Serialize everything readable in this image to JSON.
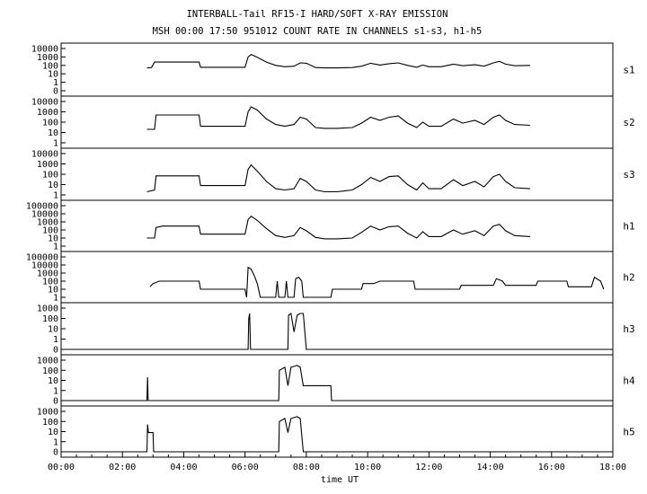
{
  "chart_data": {
    "type": "line",
    "title": "INTERBALL-Tail RF15-I HARD/SOFT X-RAY EMISSION",
    "subtitle": "MSH 00:00 17:50 951012  COUNT RATE IN CHANNELS s1-s3, h1-h5",
    "xlabel": "time UT",
    "x_ticks": [
      "00:00",
      "02:00",
      "04:00",
      "06:00",
      "08:00",
      "10:00",
      "12:00",
      "14:00",
      "16:00",
      "18:00"
    ],
    "xlim": [
      0,
      18
    ],
    "y_scale": "log",
    "panels": [
      {
        "name": "s1",
        "yticks": [
          "10000",
          "1000",
          "100",
          "10",
          "1",
          "0"
        ],
        "points": [
          [
            2.8,
            50
          ],
          [
            2.95,
            55
          ],
          [
            3.05,
            250
          ],
          [
            4.5,
            250
          ],
          [
            4.55,
            60
          ],
          [
            6.0,
            60
          ],
          [
            6.1,
            1000
          ],
          [
            6.2,
            2000
          ],
          [
            6.4,
            900
          ],
          [
            6.7,
            250
          ],
          [
            7.0,
            100
          ],
          [
            7.3,
            70
          ],
          [
            7.6,
            80
          ],
          [
            7.8,
            200
          ],
          [
            8.0,
            180
          ],
          [
            8.3,
            55
          ],
          [
            8.6,
            50
          ],
          [
            9.0,
            50
          ],
          [
            9.5,
            55
          ],
          [
            9.8,
            80
          ],
          [
            10.1,
            180
          ],
          [
            10.4,
            110
          ],
          [
            10.7,
            160
          ],
          [
            11.0,
            200
          ],
          [
            11.3,
            100
          ],
          [
            11.6,
            60
          ],
          [
            11.8,
            110
          ],
          [
            12.0,
            70
          ],
          [
            12.4,
            70
          ],
          [
            12.8,
            140
          ],
          [
            13.1,
            90
          ],
          [
            13.5,
            120
          ],
          [
            13.8,
            80
          ],
          [
            14.1,
            200
          ],
          [
            14.3,
            300
          ],
          [
            14.5,
            140
          ],
          [
            14.8,
            90
          ],
          [
            15.3,
            100
          ]
        ]
      },
      {
        "name": "s2",
        "yticks": [
          "10000",
          "1000",
          "100",
          "10",
          "1"
        ],
        "points": [
          [
            2.8,
            20
          ],
          [
            3.05,
            20
          ],
          [
            3.1,
            500
          ],
          [
            4.5,
            500
          ],
          [
            4.55,
            40
          ],
          [
            6.0,
            40
          ],
          [
            6.1,
            1000
          ],
          [
            6.2,
            3000
          ],
          [
            6.4,
            1500
          ],
          [
            6.7,
            200
          ],
          [
            7.0,
            60
          ],
          [
            7.3,
            40
          ],
          [
            7.6,
            60
          ],
          [
            7.8,
            300
          ],
          [
            8.0,
            200
          ],
          [
            8.3,
            30
          ],
          [
            8.6,
            25
          ],
          [
            9.0,
            25
          ],
          [
            9.5,
            30
          ],
          [
            9.8,
            80
          ],
          [
            10.1,
            300
          ],
          [
            10.4,
            150
          ],
          [
            10.7,
            300
          ],
          [
            11.0,
            400
          ],
          [
            11.3,
            80
          ],
          [
            11.6,
            30
          ],
          [
            11.8,
            100
          ],
          [
            12.0,
            40
          ],
          [
            12.4,
            40
          ],
          [
            12.8,
            200
          ],
          [
            13.1,
            80
          ],
          [
            13.5,
            150
          ],
          [
            13.8,
            60
          ],
          [
            14.1,
            300
          ],
          [
            14.3,
            500
          ],
          [
            14.5,
            150
          ],
          [
            14.8,
            60
          ],
          [
            15.3,
            50
          ]
        ]
      },
      {
        "name": "s3",
        "yticks": [
          "10000",
          "1000",
          "100",
          "10",
          "1"
        ],
        "points": [
          [
            2.8,
            2
          ],
          [
            3.05,
            3
          ],
          [
            3.1,
            70
          ],
          [
            4.5,
            70
          ],
          [
            4.55,
            8
          ],
          [
            6.0,
            8
          ],
          [
            6.1,
            300
          ],
          [
            6.2,
            800
          ],
          [
            6.4,
            200
          ],
          [
            6.7,
            20
          ],
          [
            7.0,
            4
          ],
          [
            7.3,
            3
          ],
          [
            7.6,
            4
          ],
          [
            7.8,
            40
          ],
          [
            8.0,
            20
          ],
          [
            8.3,
            3
          ],
          [
            8.6,
            2
          ],
          [
            9.0,
            2
          ],
          [
            9.5,
            3
          ],
          [
            9.8,
            10
          ],
          [
            10.1,
            50
          ],
          [
            10.4,
            20
          ],
          [
            10.7,
            60
          ],
          [
            11.0,
            70
          ],
          [
            11.3,
            10
          ],
          [
            11.6,
            3
          ],
          [
            11.8,
            15
          ],
          [
            12.0,
            4
          ],
          [
            12.4,
            4
          ],
          [
            12.8,
            30
          ],
          [
            13.1,
            8
          ],
          [
            13.5,
            20
          ],
          [
            13.8,
            6
          ],
          [
            14.1,
            60
          ],
          [
            14.3,
            100
          ],
          [
            14.5,
            20
          ],
          [
            14.8,
            5
          ],
          [
            15.3,
            4
          ]
        ]
      },
      {
        "name": "h1",
        "yticks": [
          "100000",
          "10000",
          "1000",
          "100",
          "10",
          "1"
        ],
        "points": [
          [
            2.8,
            10
          ],
          [
            3.05,
            10
          ],
          [
            3.1,
            200
          ],
          [
            3.3,
            300
          ],
          [
            4.5,
            300
          ],
          [
            4.55,
            30
          ],
          [
            6.0,
            30
          ],
          [
            6.1,
            2000
          ],
          [
            6.2,
            5000
          ],
          [
            6.4,
            1500
          ],
          [
            6.7,
            150
          ],
          [
            7.0,
            20
          ],
          [
            7.3,
            12
          ],
          [
            7.6,
            20
          ],
          [
            7.8,
            200
          ],
          [
            8.0,
            80
          ],
          [
            8.3,
            12
          ],
          [
            8.6,
            8
          ],
          [
            9.0,
            8
          ],
          [
            9.5,
            10
          ],
          [
            9.8,
            50
          ],
          [
            10.1,
            300
          ],
          [
            10.4,
            100
          ],
          [
            10.7,
            250
          ],
          [
            11.0,
            300
          ],
          [
            11.3,
            40
          ],
          [
            11.6,
            10
          ],
          [
            11.8,
            60
          ],
          [
            12.0,
            15
          ],
          [
            12.4,
            15
          ],
          [
            12.8,
            100
          ],
          [
            13.1,
            30
          ],
          [
            13.5,
            80
          ],
          [
            13.8,
            20
          ],
          [
            14.1,
            300
          ],
          [
            14.3,
            500
          ],
          [
            14.5,
            80
          ],
          [
            14.8,
            20
          ],
          [
            15.3,
            15
          ]
        ]
      },
      {
        "name": "h2",
        "yticks": [
          "100000",
          "10000",
          "1000",
          "100",
          "10",
          "1"
        ],
        "points": [
          [
            2.9,
            20
          ],
          [
            3.0,
            50
          ],
          [
            3.2,
            100
          ],
          [
            4.5,
            100
          ],
          [
            4.55,
            10
          ],
          [
            6.0,
            10
          ],
          [
            6.05,
            1
          ],
          [
            6.1,
            5000
          ],
          [
            6.2,
            3000
          ],
          [
            6.3,
            500
          ],
          [
            6.4,
            50
          ],
          [
            6.5,
            1
          ],
          [
            7.0,
            1
          ],
          [
            7.05,
            100
          ],
          [
            7.1,
            1
          ],
          [
            7.3,
            1
          ],
          [
            7.35,
            100
          ],
          [
            7.4,
            1
          ],
          [
            7.6,
            1
          ],
          [
            7.65,
            200
          ],
          [
            7.75,
            300
          ],
          [
            7.85,
            100
          ],
          [
            7.9,
            1
          ],
          [
            8.8,
            1
          ],
          [
            8.85,
            10
          ],
          [
            9.8,
            10
          ],
          [
            9.85,
            50
          ],
          [
            10.2,
            50
          ],
          [
            10.4,
            100
          ],
          [
            11.5,
            100
          ],
          [
            11.55,
            10
          ],
          [
            13.0,
            10
          ],
          [
            13.05,
            30
          ],
          [
            14.1,
            30
          ],
          [
            14.2,
            200
          ],
          [
            14.4,
            100
          ],
          [
            14.5,
            30
          ],
          [
            15.5,
            30
          ],
          [
            15.55,
            100
          ],
          [
            16.5,
            100
          ],
          [
            16.55,
            20
          ],
          [
            17.3,
            20
          ],
          [
            17.4,
            300
          ],
          [
            17.6,
            100
          ],
          [
            17.7,
            10
          ]
        ]
      },
      {
        "name": "h3",
        "yticks": [
          "1000",
          "100",
          "10",
          "1",
          "0"
        ],
        "points": [
          [
            0,
            0
          ],
          [
            6.1,
            0
          ],
          [
            6.12,
            100
          ],
          [
            6.15,
            300
          ],
          [
            6.18,
            0
          ],
          [
            7.4,
            0
          ],
          [
            7.42,
            200
          ],
          [
            7.5,
            300
          ],
          [
            7.6,
            5
          ],
          [
            7.7,
            200
          ],
          [
            7.8,
            300
          ],
          [
            7.9,
            300
          ],
          [
            8.0,
            0
          ],
          [
            18,
            0
          ]
        ]
      },
      {
        "name": "h4",
        "yticks": [
          "1000",
          "100",
          "10",
          "1",
          "0"
        ],
        "points": [
          [
            0,
            0
          ],
          [
            2.8,
            0
          ],
          [
            2.82,
            20
          ],
          [
            2.84,
            0
          ],
          [
            7.1,
            0
          ],
          [
            7.12,
            100
          ],
          [
            7.3,
            200
          ],
          [
            7.4,
            3
          ],
          [
            7.5,
            200
          ],
          [
            7.7,
            300
          ],
          [
            7.8,
            200
          ],
          [
            7.9,
            3
          ],
          [
            8.8,
            3
          ],
          [
            8.82,
            0
          ],
          [
            18,
            0
          ]
        ]
      },
      {
        "name": "h5",
        "yticks": [
          "1000",
          "100",
          "10",
          "1",
          "0"
        ],
        "points": [
          [
            0,
            0
          ],
          [
            2.8,
            0
          ],
          [
            2.82,
            50
          ],
          [
            2.85,
            8
          ],
          [
            3.0,
            8
          ],
          [
            3.02,
            0
          ],
          [
            7.1,
            0
          ],
          [
            7.12,
            100
          ],
          [
            7.3,
            200
          ],
          [
            7.4,
            8
          ],
          [
            7.5,
            200
          ],
          [
            7.7,
            300
          ],
          [
            7.8,
            200
          ],
          [
            7.9,
            0
          ],
          [
            18,
            0
          ]
        ]
      }
    ],
    "grid": false,
    "legend": "none"
  }
}
